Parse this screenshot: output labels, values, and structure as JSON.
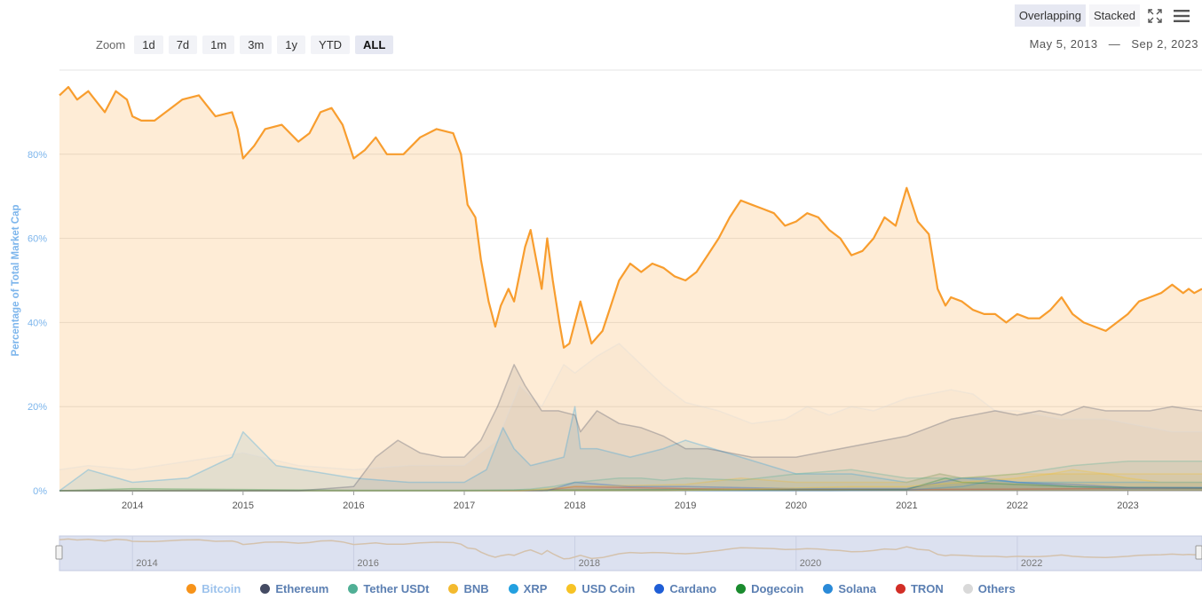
{
  "zoom": {
    "label": "Zoom",
    "buttons": [
      "1d",
      "7d",
      "1m",
      "3m",
      "1y",
      "YTD",
      "ALL"
    ],
    "active": "ALL"
  },
  "modes": {
    "overlapping": "Overlapping",
    "stacked": "Stacked",
    "active": "Overlapping"
  },
  "icons": {
    "fullscreen": "fullscreen-icon",
    "menu": "hamburger-menu-icon"
  },
  "date_range": {
    "from": "May 5, 2013",
    "separator": "—",
    "to": "Sep 2, 2023"
  },
  "chart_data": {
    "type": "area",
    "ylabel": "Percentage of Total Market Cap",
    "ylim": [
      0,
      100
    ],
    "yticks": [
      "0%",
      "20%",
      "40%",
      "60%",
      "80%"
    ],
    "xlim": [
      2013.34,
      2023.67
    ],
    "xticks": [
      "2014",
      "2015",
      "2016",
      "2017",
      "2018",
      "2019",
      "2020",
      "2021",
      "2022",
      "2023"
    ],
    "navigator_ticks": [
      "2014",
      "2016",
      "2018",
      "2020",
      "2022"
    ],
    "grid": true,
    "legend_position": "bottom",
    "series": [
      {
        "name": "Bitcoin",
        "color": "#f7931a",
        "emphasis": true,
        "x": [
          2013.34,
          2013.42,
          2013.5,
          2013.6,
          2013.75,
          2013.85,
          2013.95,
          2014.0,
          2014.08,
          2014.2,
          2014.35,
          2014.45,
          2014.6,
          2014.75,
          2014.9,
          2014.95,
          2015.0,
          2015.1,
          2015.2,
          2015.35,
          2015.5,
          2015.6,
          2015.7,
          2015.8,
          2015.9,
          2016.0,
          2016.1,
          2016.2,
          2016.3,
          2016.45,
          2016.6,
          2016.75,
          2016.9,
          2016.97,
          2017.03,
          2017.1,
          2017.15,
          2017.22,
          2017.28,
          2017.33,
          2017.4,
          2017.45,
          2017.55,
          2017.6,
          2017.7,
          2017.75,
          2017.8,
          2017.86,
          2017.9,
          2017.95,
          2018.0,
          2018.05,
          2018.15,
          2018.25,
          2018.3,
          2018.4,
          2018.5,
          2018.6,
          2018.7,
          2018.8,
          2018.9,
          2019.0,
          2019.1,
          2019.2,
          2019.3,
          2019.4,
          2019.45,
          2019.5,
          2019.6,
          2019.7,
          2019.8,
          2019.9,
          2020.0,
          2020.1,
          2020.2,
          2020.3,
          2020.4,
          2020.5,
          2020.6,
          2020.7,
          2020.8,
          2020.9,
          2021.0,
          2021.05,
          2021.1,
          2021.2,
          2021.28,
          2021.35,
          2021.4,
          2021.5,
          2021.6,
          2021.7,
          2021.8,
          2021.9,
          2022.0,
          2022.1,
          2022.2,
          2022.3,
          2022.4,
          2022.5,
          2022.6,
          2022.7,
          2022.8,
          2022.9,
          2023.0,
          2023.1,
          2023.2,
          2023.3,
          2023.4,
          2023.5,
          2023.55,
          2023.6,
          2023.67
        ],
        "y": [
          94,
          96,
          93,
          95,
          90,
          95,
          93,
          89,
          88,
          88,
          91,
          93,
          94,
          89,
          90,
          86,
          79,
          82,
          86,
          87,
          83,
          85,
          90,
          91,
          87,
          79,
          81,
          84,
          80,
          80,
          84,
          86,
          85,
          80,
          68,
          65,
          55,
          45,
          39,
          44,
          48,
          45,
          58,
          62,
          48,
          60,
          50,
          40,
          34,
          35,
          40,
          45,
          35,
          38,
          42,
          50,
          54,
          52,
          54,
          53,
          51,
          50,
          52,
          56,
          60,
          65,
          67,
          69,
          68,
          67,
          66,
          63,
          64,
          66,
          65,
          62,
          60,
          56,
          57,
          60,
          65,
          63,
          72,
          68,
          64,
          61,
          48,
          44,
          46,
          45,
          43,
          42,
          42,
          40,
          42,
          41,
          41,
          43,
          46,
          42,
          40,
          39,
          38,
          40,
          42,
          45,
          46,
          47,
          49,
          47,
          48,
          47,
          48
        ]
      },
      {
        "name": "Ethereum",
        "color": "#444b63",
        "x": [
          2013.34,
          2015.5,
          2016.0,
          2016.2,
          2016.4,
          2016.6,
          2016.8,
          2017.0,
          2017.15,
          2017.3,
          2017.45,
          2017.55,
          2017.7,
          2017.85,
          2018.0,
          2018.05,
          2018.2,
          2018.4,
          2018.6,
          2018.8,
          2019.0,
          2019.2,
          2019.4,
          2019.6,
          2019.8,
          2020.0,
          2020.2,
          2020.4,
          2020.6,
          2020.8,
          2021.0,
          2021.2,
          2021.4,
          2021.6,
          2021.8,
          2022.0,
          2022.2,
          2022.4,
          2022.6,
          2022.8,
          2023.0,
          2023.2,
          2023.4,
          2023.67
        ],
        "y": [
          0,
          0,
          1,
          8,
          12,
          9,
          8,
          8,
          12,
          20,
          30,
          25,
          19,
          19,
          18,
          14,
          19,
          16,
          15,
          13,
          10,
          10,
          9,
          8,
          8,
          8,
          9,
          10,
          11,
          12,
          13,
          15,
          17,
          18,
          19,
          18,
          19,
          18,
          20,
          19,
          19,
          19,
          20,
          19
        ]
      },
      {
        "name": "Tether USDt",
        "color": "#50af95",
        "x": [
          2013.34,
          2014.5,
          2015.0,
          2015.5,
          2016.0,
          2017.0,
          2017.3,
          2017.45,
          2017.6,
          2017.8,
          2018.0,
          2018.2,
          2018.4,
          2018.6,
          2018.8,
          2019.0,
          2019.5,
          2020.0,
          2020.5,
          2021.0,
          2021.5,
          2022.0,
          2022.5,
          2023.0,
          2023.5,
          2023.67
        ],
        "y": [
          0,
          0,
          0,
          0,
          0,
          0,
          0.1,
          0.2,
          0.4,
          1,
          2,
          2.5,
          3,
          3,
          2.5,
          3,
          2.5,
          4,
          5,
          3,
          3,
          4,
          6,
          7,
          7,
          7
        ]
      },
      {
        "name": "BNB",
        "color": "#f3ba2f",
        "x": [
          2013.34,
          2017.5,
          2018.0,
          2019.0,
          2019.5,
          2020.0,
          2021.0,
          2021.3,
          2021.5,
          2022.0,
          2022.5,
          2023.0,
          2023.5,
          2023.67
        ],
        "y": [
          0,
          0,
          1,
          1.5,
          3,
          2,
          2,
          4,
          3,
          4,
          4,
          4,
          4,
          4
        ]
      },
      {
        "name": "XRP",
        "color": "#23a0e0",
        "x": [
          2013.34,
          2013.6,
          2014.0,
          2014.5,
          2014.9,
          2015.0,
          2015.3,
          2016.0,
          2016.5,
          2017.0,
          2017.2,
          2017.35,
          2017.45,
          2017.6,
          2017.9,
          2018.0,
          2018.05,
          2018.2,
          2018.5,
          2018.8,
          2019.0,
          2019.5,
          2020.0,
          2020.5,
          2021.0,
          2021.3,
          2021.5,
          2022.0,
          2022.5,
          2023.0,
          2023.5,
          2023.67
        ],
        "y": [
          0,
          5,
          2,
          3,
          8,
          14,
          6,
          3,
          2,
          2,
          5,
          15,
          10,
          6,
          8,
          20,
          10,
          10,
          8,
          10,
          12,
          8,
          4,
          4,
          2,
          4,
          3,
          2,
          2,
          2,
          2,
          2
        ]
      },
      {
        "name": "USD Coin",
        "color": "#f7c325",
        "x": [
          2013.34,
          2018.8,
          2019.5,
          2020.5,
          2021.0,
          2021.5,
          2022.0,
          2022.3,
          2022.5,
          2022.8,
          2023.0,
          2023.3,
          2023.67
        ],
        "y": [
          0,
          0,
          0.3,
          1,
          1,
          2,
          3,
          4,
          5,
          4,
          3,
          2,
          2
        ]
      },
      {
        "name": "Cardano",
        "color": "#1f5ed6",
        "x": [
          2013.34,
          2017.75,
          2018.0,
          2018.5,
          2019.0,
          2020.0,
          2021.0,
          2021.5,
          2021.7,
          2022.0,
          2022.5,
          2023.0,
          2023.67
        ],
        "y": [
          0,
          0,
          2,
          1,
          1,
          0.5,
          0.5,
          3,
          3,
          2,
          1.5,
          0.8,
          0.8
        ]
      },
      {
        "name": "Dogecoin",
        "color": "#1a8b2e",
        "x": [
          2013.34,
          2014.0,
          2015.0,
          2016.0,
          2017.0,
          2018.0,
          2019.0,
          2021.0,
          2021.35,
          2021.5,
          2022.0,
          2022.5,
          2023.0,
          2023.67
        ],
        "y": [
          0,
          0.5,
          0.3,
          0.1,
          0.1,
          0.2,
          0.3,
          0.3,
          3,
          2,
          1.5,
          1,
          0.8,
          0.7
        ]
      },
      {
        "name": "Solana",
        "color": "#2a8ad8",
        "x": [
          2013.34,
          2020.3,
          2021.0,
          2021.5,
          2021.8,
          2022.0,
          2022.5,
          2023.0,
          2023.67
        ],
        "y": [
          0,
          0,
          0.2,
          1,
          2.5,
          2,
          1,
          0.5,
          0.6
        ]
      },
      {
        "name": "TRON",
        "color": "#d22e26",
        "x": [
          2013.34,
          2017.7,
          2018.0,
          2019.0,
          2020.0,
          2021.0,
          2022.0,
          2023.0,
          2023.67
        ],
        "y": [
          0,
          0,
          1,
          0.5,
          0.3,
          0.3,
          0.4,
          0.6,
          0.6
        ]
      },
      {
        "name": "Others",
        "color": "#d9d9d9",
        "x": [
          2013.34,
          2013.6,
          2014.0,
          2014.5,
          2015.0,
          2015.5,
          2016.0,
          2016.5,
          2017.0,
          2017.3,
          2017.5,
          2017.7,
          2017.9,
          2018.0,
          2018.2,
          2018.4,
          2018.6,
          2018.8,
          2019.0,
          2019.3,
          2019.6,
          2019.9,
          2020.1,
          2020.3,
          2020.5,
          2020.7,
          2020.9,
          2021.0,
          2021.2,
          2021.4,
          2021.6,
          2021.8,
          2022.0,
          2022.2,
          2022.4,
          2022.6,
          2022.8,
          2023.0,
          2023.2,
          2023.4,
          2023.67
        ],
        "y": [
          5,
          6,
          5,
          7,
          9,
          6,
          5,
          6,
          6,
          12,
          25,
          20,
          30,
          28,
          32,
          35,
          30,
          25,
          21,
          19,
          16,
          17,
          20,
          18,
          20,
          19,
          21,
          22,
          23,
          24,
          23,
          19,
          19,
          18,
          17,
          17,
          17,
          16,
          15,
          14,
          14
        ]
      }
    ]
  }
}
